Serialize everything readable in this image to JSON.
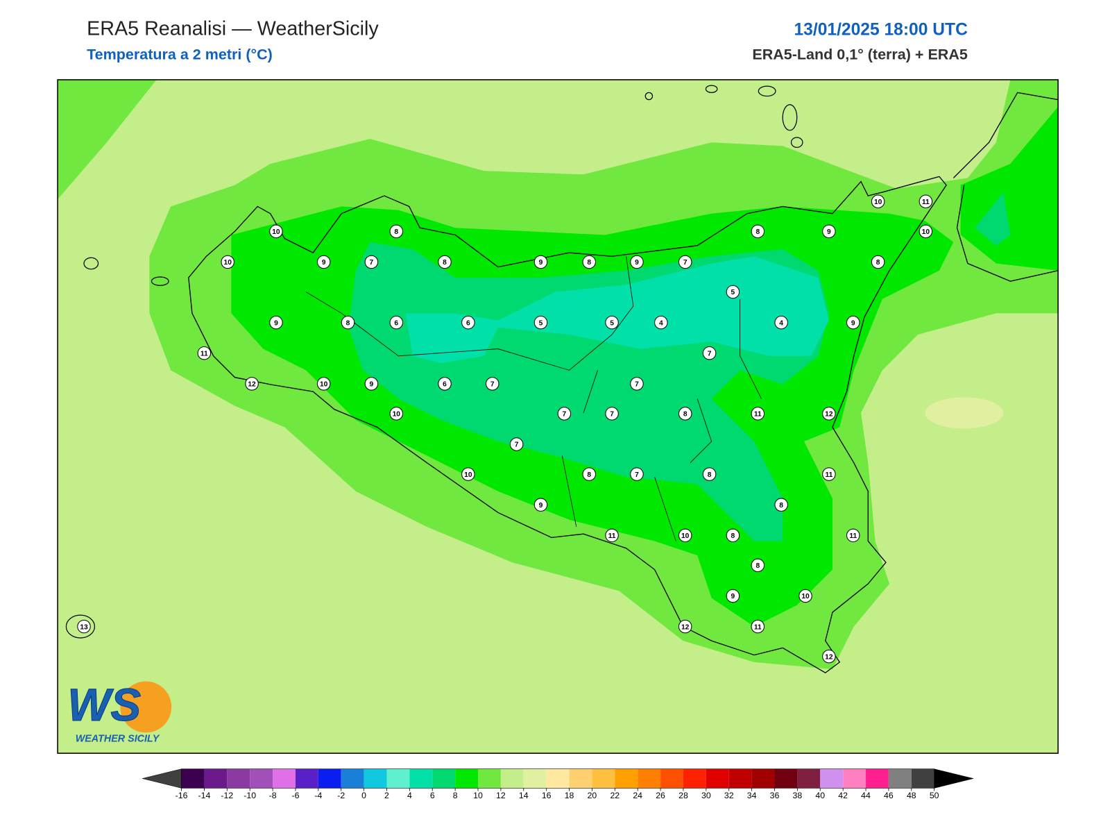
{
  "header": {
    "title": "ERA5 Reanalisi — WeatherSicily",
    "subtitle": "Temperatura a 2 metri (°C)",
    "datetime": "13/01/2025 18:00 UTC",
    "source": "ERA5-Land 0,1° (terra) + ERA5"
  },
  "stations": [
    10,
    8,
    10,
    9,
    7,
    8,
    9,
    8,
    9,
    7,
    8,
    9,
    10,
    11,
    10,
    8,
    5,
    9,
    8,
    6,
    6,
    5,
    5,
    4,
    4,
    9,
    11,
    7,
    12,
    10,
    9,
    6,
    7,
    7,
    10,
    7,
    7,
    8,
    11,
    12,
    7,
    10,
    8,
    7,
    8,
    11,
    8,
    9,
    11,
    10,
    8,
    11,
    8,
    9,
    10,
    12,
    11,
    12,
    13
  ],
  "colorbar": {
    "ticks": [
      -16,
      -14,
      -12,
      -10,
      -8,
      -6,
      -4,
      -2,
      0,
      2,
      4,
      6,
      8,
      10,
      12,
      14,
      16,
      18,
      20,
      22,
      24,
      26,
      28,
      30,
      32,
      34,
      36,
      38,
      40,
      42,
      44,
      46,
      48,
      50
    ],
    "colors": [
      "#3b0050",
      "#6a1a8a",
      "#8a3aa0",
      "#a050b8",
      "#e070e8",
      "#5a20c8",
      "#0a1ef0",
      "#1a7fd8",
      "#10c8e0",
      "#60f0d0",
      "#00e0a8",
      "#00d870",
      "#00e800",
      "#70e840",
      "#c4ee8a",
      "#e0f0a0",
      "#ffe8a0",
      "#ffd070",
      "#ffc040",
      "#ffa000",
      "#ff8000",
      "#ff5000",
      "#ff2000",
      "#e00000",
      "#c00000",
      "#a00000",
      "#700010",
      "#802040",
      "#d090f0",
      "#ff80c0",
      "#ff2090",
      "#808080",
      "#404040"
    ],
    "under_color": "#404040",
    "over_color": "#000000"
  },
  "logo": {
    "letters": "WS",
    "name": "WEATHER SICILY"
  }
}
